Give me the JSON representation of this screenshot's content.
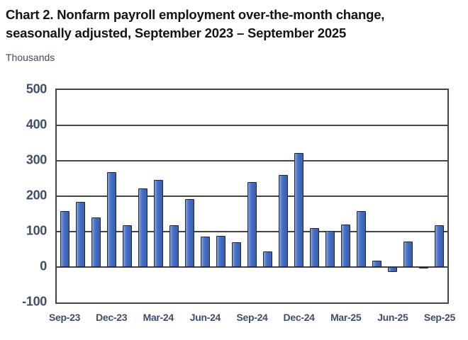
{
  "header": {
    "title_line1": "Chart 2. Nonfarm payroll employment over-the-month change,",
    "title_line2": "seasonally adjusted, September 2023 – September 2025",
    "units_label": "Thousands"
  },
  "chart_data": {
    "type": "bar",
    "title": "Chart 2. Nonfarm payroll employment over-the-month change, seasonally adjusted, September 2023 – September 2025",
    "xlabel": "",
    "ylabel": "Thousands",
    "categories": [
      "Sep-23",
      "Oct-23",
      "Nov-23",
      "Dec-23",
      "Jan-24",
      "Feb-24",
      "Mar-24",
      "Apr-24",
      "May-24",
      "Jun-24",
      "Jul-24",
      "Aug-24",
      "Sep-24",
      "Oct-24",
      "Nov-24",
      "Dec-24",
      "Jan-25",
      "Feb-25",
      "Mar-25",
      "Apr-25",
      "May-25",
      "Jun-25",
      "Jul-25",
      "Aug-25",
      "Sep-25"
    ],
    "values": [
      158,
      184,
      140,
      269,
      119,
      222,
      246,
      118,
      193,
      87,
      88,
      71,
      240,
      44,
      261,
      323,
      111,
      102,
      120,
      158,
      19,
      -13,
      72,
      -4,
      119
    ],
    "x_tick_labels": [
      "Sep-23",
      "Dec-23",
      "Mar-24",
      "Jun-24",
      "Sep-24",
      "Dec-24",
      "Mar-25",
      "Jun-25",
      "Sep-25"
    ],
    "x_tick_every": 3,
    "y_tick_labels": [
      "500",
      "400",
      "300",
      "200",
      "100",
      "0",
      "-100"
    ],
    "ylim": [
      -100,
      500
    ],
    "ytick_step": 100,
    "grid": true,
    "legend": false,
    "colors": {
      "bar_fill": "#4470c4",
      "bar_highlight": "#8aa3dc",
      "bar_shadow": "#3a5db2",
      "bar_border": "#1e2742",
      "grid": "#454545",
      "tick_labels": "#3e4d6d",
      "title_text": "#141414"
    }
  }
}
